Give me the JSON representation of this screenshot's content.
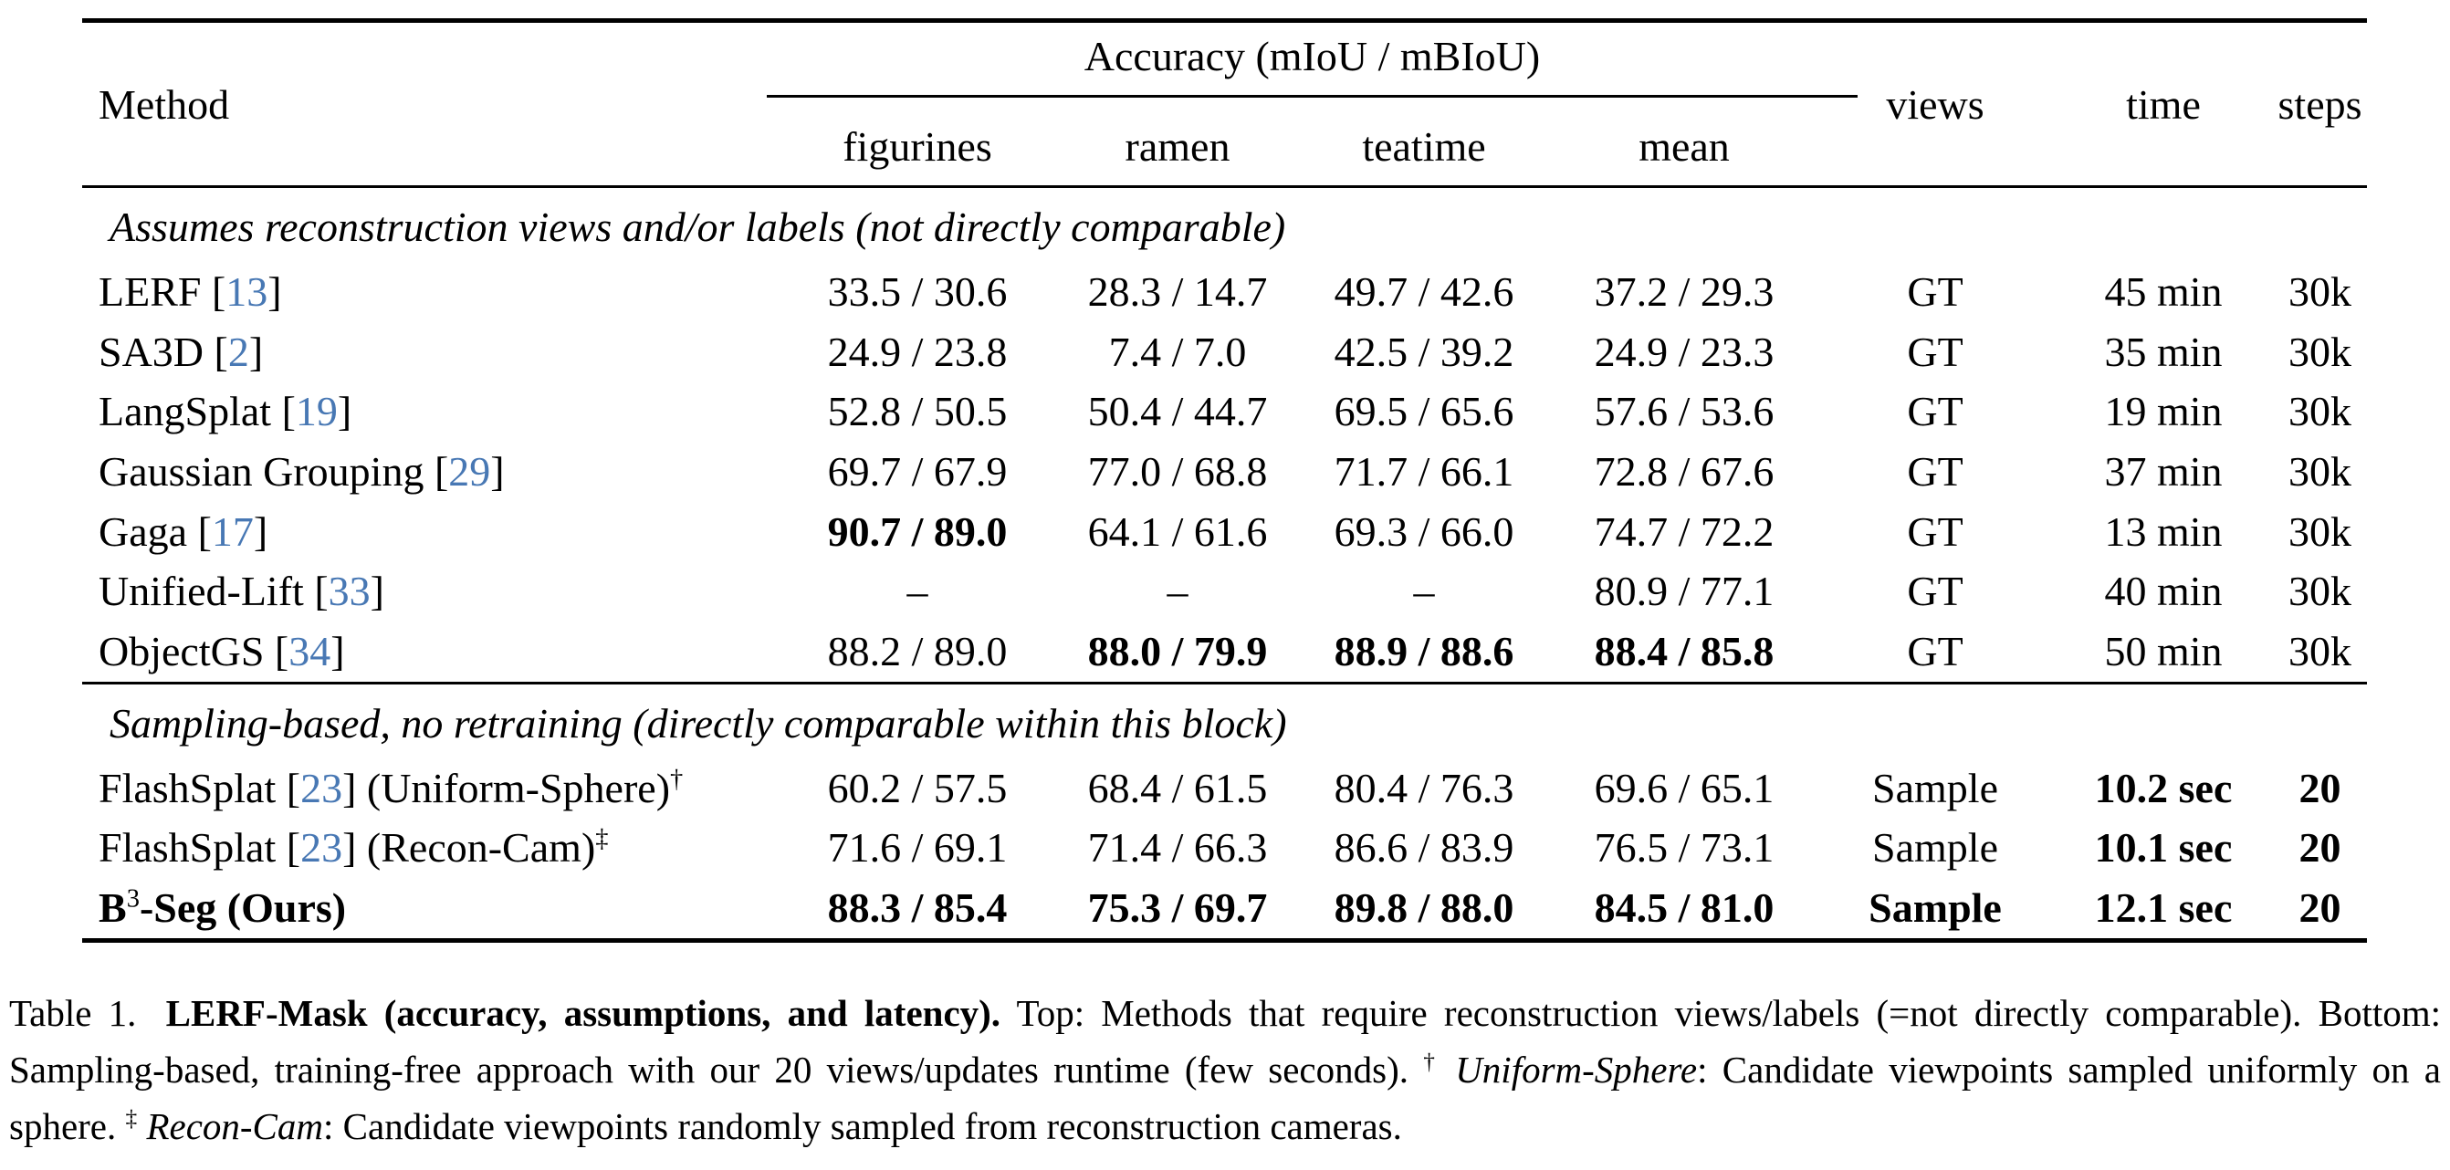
{
  "page": {
    "background": "#ffffff",
    "text_color": "#000000",
    "citation_color": "#4878b4"
  },
  "table": {
    "bracket_open": "[",
    "bracket_close": "]",
    "header": {
      "method": "Method",
      "accuracy_group": "Accuracy (mIoU / mBIoU)",
      "sub_columns": [
        "figurines",
        "ramen",
        "teatime",
        "mean"
      ],
      "views": "views",
      "time": "time",
      "steps": "steps"
    },
    "section_a": {
      "title": "Assumes reconstruction views and/or labels (not directly comparable)",
      "rows": [
        {
          "method": "LERF",
          "cite": "13",
          "suffix": "",
          "sup": "",
          "figurines": "33.5 / 30.6",
          "ramen": "28.3 / 14.7",
          "teatime": "49.7 / 42.6",
          "mean": "37.2 / 29.3",
          "views": "GT",
          "time": "45 min",
          "steps": "30k"
        },
        {
          "method": "SA3D",
          "cite": "2",
          "suffix": "",
          "sup": "",
          "figurines": "24.9 / 23.8",
          "ramen": "7.4 / 7.0",
          "teatime": "42.5 / 39.2",
          "mean": "24.9 / 23.3",
          "views": "GT",
          "time": "35 min",
          "steps": "30k"
        },
        {
          "method": "LangSplat",
          "cite": "19",
          "suffix": "",
          "sup": "",
          "figurines": "52.8 / 50.5",
          "ramen": "50.4 / 44.7",
          "teatime": "69.5 / 65.6",
          "mean": "57.6 / 53.6",
          "views": "GT",
          "time": "19 min",
          "steps": "30k"
        },
        {
          "method": "Gaussian Grouping",
          "cite": "29",
          "suffix": "",
          "sup": "",
          "figurines": "69.7 / 67.9",
          "ramen": "77.0 / 68.8",
          "teatime": "71.7 / 66.1",
          "mean": "72.8 / 67.6",
          "views": "GT",
          "time": "37 min",
          "steps": "30k"
        },
        {
          "method": "Gaga",
          "cite": "17",
          "suffix": "",
          "sup": "",
          "figurines": "90.7 / 89.0",
          "ramen": "64.1 / 61.6",
          "teatime": "69.3 / 66.0",
          "mean": "74.7 / 72.2",
          "views": "GT",
          "time": "13 min",
          "steps": "30k"
        },
        {
          "method": "Unified-Lift",
          "cite": "33",
          "suffix": "",
          "sup": "",
          "figurines": "–",
          "ramen": "–",
          "teatime": "–",
          "mean": "80.9 / 77.1",
          "views": "GT",
          "time": "40 min",
          "steps": "30k"
        },
        {
          "method": "ObjectGS",
          "cite": "34",
          "suffix": "",
          "sup": "",
          "figurines": "88.2 / 89.0",
          "ramen": "88.0 / 79.9",
          "teatime": "88.9 / 88.6",
          "mean": "88.4 / 85.8",
          "views": "GT",
          "time": "50 min",
          "steps": "30k"
        }
      ]
    },
    "section_b": {
      "title": "Sampling-based, no retraining (directly comparable within this block)",
      "rows": [
        {
          "method": "FlashSplat",
          "cite": "23",
          "suffix": "(Uniform-Sphere)",
          "sup": "†",
          "figurines": "60.2 / 57.5",
          "ramen": "68.4 / 61.5",
          "teatime": "80.4 / 76.3",
          "mean": "69.6 / 65.1",
          "views": "Sample",
          "time": "10.2 sec",
          "steps": "20"
        },
        {
          "method": "FlashSplat",
          "cite": "23",
          "suffix": "(Recon-Cam)",
          "sup": "‡",
          "figurines": "71.6 / 69.1",
          "ramen": "71.4 / 66.3",
          "teatime": "86.6 / 83.9",
          "mean": "76.5 / 73.1",
          "views": "Sample",
          "time": "10.1 sec",
          "steps": "20"
        },
        {
          "method_pre": "B",
          "method_sup": "3",
          "method_post": "-Seg (Ours)",
          "figurines": "88.3 / 85.4",
          "ramen": "75.3 / 69.7",
          "teatime": "89.8 / 88.0",
          "mean": "84.5 / 81.0",
          "views": "Sample",
          "time": "12.1 sec",
          "steps": "20"
        }
      ]
    }
  },
  "caption": {
    "label": "Table 1.",
    "title_bold": "LERF-Mask (accuracy, assumptions, and latency).",
    "body": "Top: Methods that require reconstruction views/labels (=not directly comparable). Bottom: Sampling-based, training-free approach with our 20 views/updates runtime (few seconds).",
    "dagger": "†",
    "dagger_term": "Uniform-Sphere",
    "dagger_text": ": Candidate viewpoints sampled uniformly on a sphere.",
    "ddagger": "‡",
    "ddagger_term": "Recon-Cam",
    "ddagger_text": ": Candidate viewpoints randomly sampled from reconstruction cameras."
  }
}
